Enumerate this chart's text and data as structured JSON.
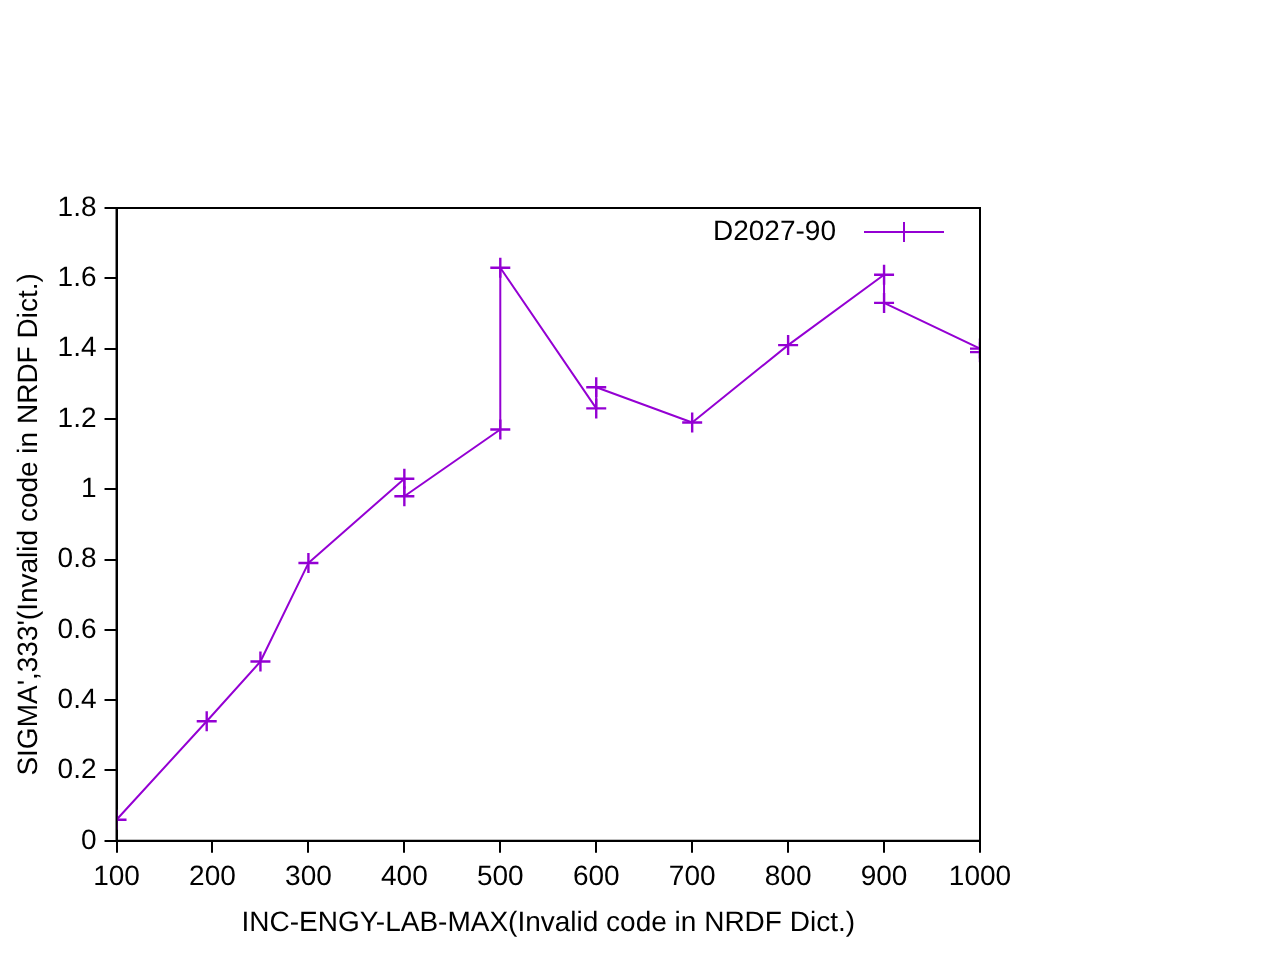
{
  "chart_data": {
    "type": "line",
    "xlabel": "INC-ENGY-LAB-MAX(Invalid code in NRDF Dict.)",
    "ylabel": "SIGMA',333'(Invalid code in NRDF Dict.)",
    "series": [
      {
        "name": "D2027-90",
        "color": "#9400d3",
        "x": [
          100,
          194,
          250,
          300,
          400,
          400,
          500,
          500,
          600,
          600,
          700,
          800,
          900,
          900,
          1000,
          1000
        ],
        "values": [
          0.06,
          0.34,
          0.51,
          0.79,
          1.03,
          0.98,
          1.17,
          1.63,
          1.23,
          1.29,
          1.19,
          1.41,
          1.61,
          1.53,
          1.4,
          1.39
        ]
      }
    ],
    "xlim": [
      100,
      1000
    ],
    "xticks": [
      100,
      200,
      300,
      400,
      500,
      600,
      700,
      800,
      900,
      1000
    ],
    "ylim": [
      0,
      1.8
    ],
    "yticks": [
      0,
      0.2,
      0.4,
      0.6,
      0.8,
      1,
      1.2,
      1.4,
      1.6,
      1.8
    ],
    "grid": false,
    "legend": "top right",
    "marker": "cross",
    "line_style": "solid"
  }
}
